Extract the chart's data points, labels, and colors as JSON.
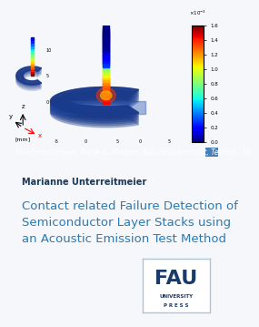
{
  "bg_color": "#f0f4f8",
  "header_bg": "#2c5f8a",
  "header_text": "FAU Forschungen, Reihe B, Medizin, Naturwissenschaft, Technik  33",
  "header_text_color": "#ffffff",
  "header_fontsize": 5.5,
  "author": "Marianne Unterreitmeier",
  "author_fontsize": 7,
  "author_color": "#1a3a5c",
  "title_line1": "Contact related Failure Detection of",
  "title_line2": "Semiconductor Layer Stacks using",
  "title_line3": "an Acoustic Emission Test Method",
  "title_color": "#2c7ab5",
  "title_fontsize": 9.5,
  "fau_box_color": "#c8d8e8",
  "fau_text_color": "#1a3a6c",
  "colorbar_min": 0.0,
  "colorbar_max": 1.6,
  "colorbar_ticks": [
    0.0,
    0.2,
    0.4,
    0.6,
    0.8,
    1.0,
    1.2,
    1.4,
    1.6
  ],
  "axis_label_mm": "[mm]",
  "accent_bar_color": "#4a7fb5",
  "top_bg": "#dce8f0"
}
